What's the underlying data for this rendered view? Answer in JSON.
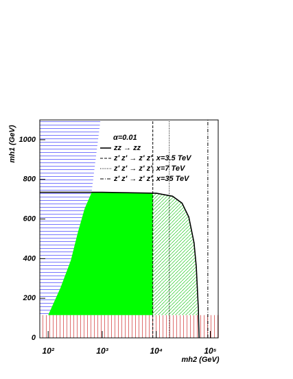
{
  "chart_data": {
    "type": "line",
    "x_label": "mh2 (GeV)",
    "y_label": "mh1 (GeV)",
    "legend_title": "α=0.01",
    "xscale": "log",
    "xlim": [
      70,
      140000
    ],
    "ylim": [
      0,
      1100
    ],
    "xticks": [
      {
        "value": 100,
        "label": "10²"
      },
      {
        "value": 1000,
        "label": "10³"
      },
      {
        "value": 10000,
        "label": "10⁴"
      },
      {
        "value": 100000,
        "label": "10⁵"
      }
    ],
    "yticks": [
      0,
      200,
      400,
      600,
      800,
      1000
    ],
    "regions": [
      {
        "color": "#3a3aff",
        "hatch": "horizontal",
        "x": [
          100,
          169,
          263,
          353,
          473,
          635,
          930
        ],
        "y": [
          115,
          253,
          392,
          531,
          653,
          733,
          1100
        ]
      },
      {
        "color": "#00ff00",
        "hatch": "solid",
        "x": [
          100,
          169,
          263,
          353,
          473,
          635,
          8630,
          8630
        ],
        "y": [
          115,
          253,
          392,
          531,
          653,
          733,
          733,
          115
        ]
      },
      {
        "color": "#22cc22",
        "hatch": "diagonal",
        "x": [
          8630,
          8630,
          20000,
          30000,
          40000,
          50000,
          55000,
          58000
        ],
        "y": [
          115,
          733,
          715,
          680,
          610,
          480,
          360,
          115
        ]
      },
      {
        "color": "#d03030",
        "hatch": "vertical",
        "x": [
          70,
          140000,
          140000,
          70
        ],
        "y": [
          0,
          0,
          115,
          115
        ]
      }
    ],
    "series": [
      {
        "name": "zz → zz",
        "color": "#000000",
        "dash": "solid",
        "x": [
          70,
          1000,
          10000,
          20000,
          30000,
          40000,
          50000,
          55000,
          60000,
          62000
        ],
        "y": [
          735,
          735,
          730,
          715,
          680,
          610,
          480,
          360,
          150,
          0
        ]
      },
      {
        "name": "z' z' → z' z', x=3.5 TeV",
        "color": "#000000",
        "dash": "dashed",
        "x": [
          8630,
          8630
        ],
        "y": [
          0,
          1100
        ]
      },
      {
        "name": "z' z' → z' z', x=7 TeV",
        "color": "#000000",
        "dash": "dotted",
        "x": [
          17400,
          17400
        ],
        "y": [
          0,
          1100
        ]
      },
      {
        "name": "z' z' → z' z', x=35 TeV",
        "color": "#000000",
        "dash": "dashdot",
        "x": [
          90000,
          90000
        ],
        "y": [
          0,
          1100
        ]
      }
    ]
  }
}
